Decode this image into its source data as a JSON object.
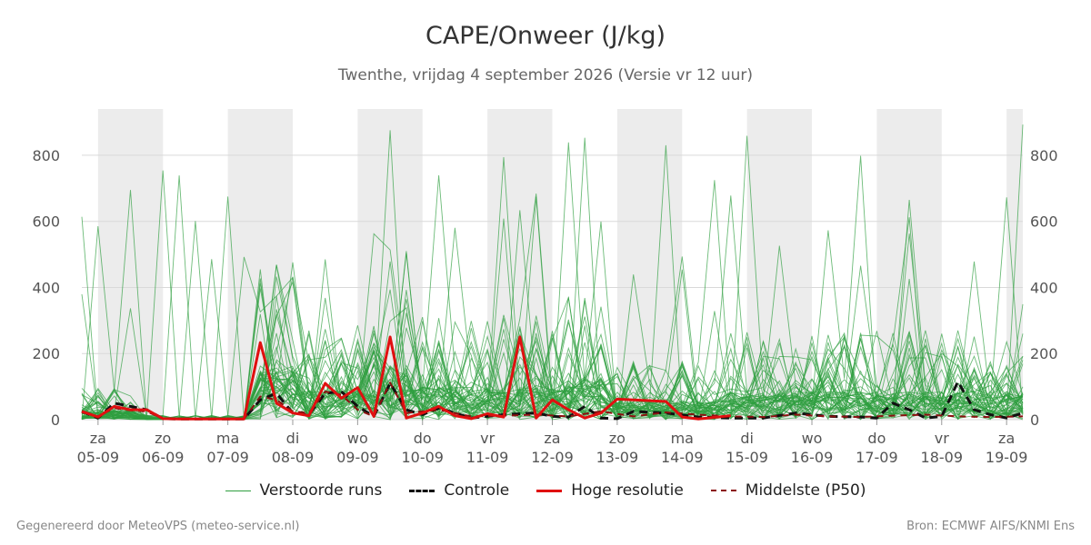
{
  "title": "CAPE/Onweer (J/kg)",
  "subtitle": "Twenthe, vrijdag  4 september 2026 (Versie vr 12 uur)",
  "footer": {
    "left": "Gegenereerd door MeteoVPS (meteo-service.nl)",
    "right": "Bron: ECMWF AIFS/KNMI Ens"
  },
  "colors": {
    "ensemble": "#2e9e3e",
    "control": "#111111",
    "high_res": "#e01010",
    "median": "#8b1010",
    "weekend_band": "#ececec",
    "grid": "#d9d9d9"
  },
  "legend": [
    {
      "key": "ensemble",
      "label": "Verstoorde runs",
      "style": "thin"
    },
    {
      "key": "control",
      "label": "Controle",
      "style": "dashed"
    },
    {
      "key": "high_res",
      "label": "Hoge resolutie",
      "style": "solid"
    },
    {
      "key": "median",
      "label": "Middelste (P50)",
      "style": "dashed-thin"
    }
  ],
  "chart_data": {
    "type": "line",
    "ylabel": "",
    "ylim": [
      0,
      940
    ],
    "yticks": [
      0,
      200,
      400,
      600,
      800
    ],
    "xlim": [
      0,
      14.5
    ],
    "grid": "horizontal",
    "legend_position": "bottom",
    "day_ticks": [
      {
        "day": "za",
        "date": "05-09"
      },
      {
        "day": "zo",
        "date": "06-09"
      },
      {
        "day": "ma",
        "date": "07-09"
      },
      {
        "day": "di",
        "date": "08-09"
      },
      {
        "day": "wo",
        "date": "09-09"
      },
      {
        "day": "do",
        "date": "10-09"
      },
      {
        "day": "vr",
        "date": "11-09"
      },
      {
        "day": "za",
        "date": "12-09"
      },
      {
        "day": "zo",
        "date": "13-09"
      },
      {
        "day": "ma",
        "date": "14-09"
      },
      {
        "day": "di",
        "date": "15-09"
      },
      {
        "day": "wo",
        "date": "16-09"
      },
      {
        "day": "do",
        "date": "17-09"
      },
      {
        "day": "vr",
        "date": "18-09"
      },
      {
        "day": "za",
        "date": "19-09"
      }
    ],
    "day_x": [
      0.25,
      1.25,
      2.25,
      3.25,
      4.25,
      5.25,
      6.25,
      7.25,
      8.25,
      9.25,
      10.25,
      11.25,
      12.25,
      13.25,
      14.25
    ],
    "shaded_days": [
      [
        0.25,
        1.25
      ],
      [
        2.25,
        3.25
      ],
      [
        4.25,
        5.25
      ],
      [
        6.25,
        7.25
      ],
      [
        8.25,
        9.25
      ],
      [
        10.25,
        11.25
      ],
      [
        12.25,
        13.25
      ],
      [
        14.25,
        14.5
      ]
    ],
    "series": [
      {
        "name": "Hoge resolutie",
        "key": "high_res",
        "x": [
          0,
          0.25,
          0.5,
          0.75,
          1.0,
          1.25,
          1.5,
          1.75,
          2.0,
          2.25,
          2.5,
          2.75,
          3.0,
          3.25,
          3.5,
          3.75,
          4.0,
          4.25,
          4.5,
          4.75,
          5.0,
          5.25,
          5.5,
          5.75,
          6.0,
          6.25,
          6.5,
          6.75,
          7.0,
          7.25,
          7.5,
          7.75,
          8.0,
          8.25,
          8.5,
          9.0,
          9.25,
          9.5,
          10.0
        ],
        "y": [
          25,
          8,
          40,
          30,
          30,
          3,
          2,
          2,
          2,
          2,
          2,
          233,
          50,
          20,
          12,
          110,
          65,
          97,
          10,
          250,
          5,
          20,
          40,
          12,
          3,
          18,
          8,
          250,
          5,
          60,
          30,
          5,
          20,
          62,
          60,
          55,
          8,
          2,
          12
        ]
      },
      {
        "name": "Controle",
        "key": "control",
        "x": [
          0,
          0.25,
          0.5,
          0.75,
          1.0,
          1.25,
          1.5,
          2.0,
          2.25,
          2.5,
          2.75,
          3.0,
          3.25,
          3.5,
          3.75,
          4.0,
          4.25,
          4.5,
          4.75,
          5.0,
          5.25,
          5.5,
          5.75,
          6.0,
          6.5,
          7.0,
          7.25,
          7.5,
          7.75,
          8.0,
          8.25,
          8.5,
          9.0,
          9.5,
          10.0,
          10.5,
          11.0,
          11.5,
          12.0,
          12.25,
          12.5,
          12.75,
          13.0,
          13.25,
          13.5,
          13.75,
          14.0,
          14.25,
          14.5
        ],
        "y": [
          25,
          5,
          50,
          40,
          30,
          3,
          2,
          2,
          2,
          2,
          60,
          80,
          20,
          15,
          80,
          85,
          40,
          10,
          110,
          30,
          15,
          35,
          20,
          5,
          15,
          20,
          10,
          8,
          40,
          5,
          3,
          25,
          20,
          8,
          5,
          5,
          20,
          10,
          8,
          5,
          50,
          30,
          5,
          10,
          115,
          30,
          15,
          5,
          20
        ]
      },
      {
        "name": "Middelste (P50)",
        "key": "median",
        "x": [
          0,
          0.25,
          0.5,
          0.75,
          1.0,
          1.25,
          2.25,
          2.5,
          2.75,
          3.0,
          3.25,
          3.5,
          3.75,
          4.0,
          4.25,
          4.5,
          4.75,
          5.0,
          5.5,
          6.0,
          6.5,
          7.0,
          7.5,
          8.0,
          8.5,
          9.0,
          9.5,
          10.0,
          10.5,
          11.0,
          11.5,
          12.0,
          12.5,
          13.0,
          13.5,
          14.0,
          14.5
        ],
        "y": [
          22,
          10,
          35,
          28,
          25,
          3,
          2,
          2,
          70,
          60,
          25,
          20,
          85,
          75,
          30,
          10,
          112,
          20,
          30,
          10,
          12,
          15,
          10,
          25,
          10,
          22,
          15,
          10,
          8,
          15,
          10,
          8,
          12,
          15,
          10,
          8,
          10
        ]
      },
      {
        "name": "Verstoorde runs",
        "key": "ensemble",
        "note_count": 50
      }
    ]
  }
}
